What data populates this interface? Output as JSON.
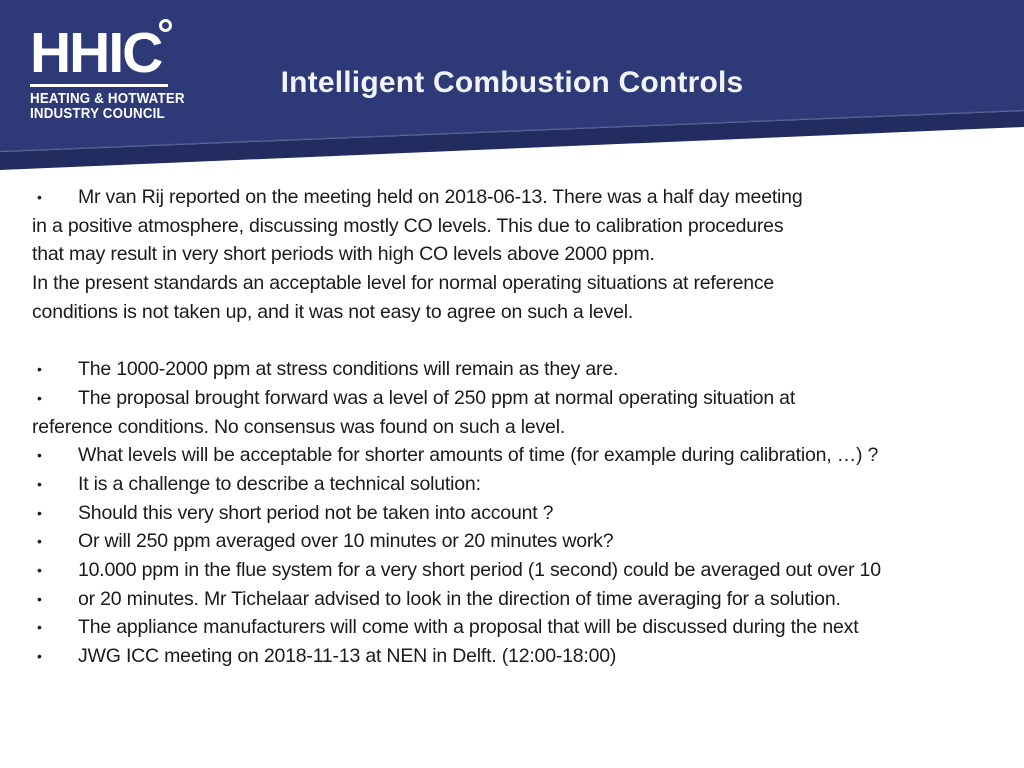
{
  "colors": {
    "header_navy": "#2d3a77",
    "header_dark_navy": "#222c60",
    "header_highlight": "#9aa2c6",
    "title_text": "#f2f3f9",
    "body_text": "#1b1b1b",
    "logo_text": "#ffffff",
    "background": "#ffffff"
  },
  "logo": {
    "acronym": "HHIC",
    "line1": "HEATING & HOTWATER",
    "line2": "INDUSTRY COUNCIL"
  },
  "title": "Intelligent Combustion Controls",
  "body": {
    "bullet_glyph": "•",
    "lines": [
      {
        "b": true,
        "t": "Mr van Rij reported on the meeting held on 2018-06-13. There was a half day meeting"
      },
      {
        "b": false,
        "t": "in a positive atmosphere, discussing mostly CO levels. This due to calibration procedures"
      },
      {
        "b": false,
        "t": "that may result in very short periods with high CO levels above 2000 ppm."
      },
      {
        "b": false,
        "t": "In the present standards an acceptable level for normal operating situations at reference"
      },
      {
        "b": false,
        "t": "conditions is not taken up, and it was not easy to agree on such a level."
      },
      {
        "b": false,
        "t": ""
      },
      {
        "b": true,
        "t": "The 1000-2000 ppm at stress conditions will remain as they are."
      },
      {
        "b": true,
        "t": "The proposal brought forward was a level of 250 ppm at normal operating situation at"
      },
      {
        "b": false,
        "t": "reference conditions. No consensus was found on such a level."
      },
      {
        "b": true,
        "t": "What levels will be acceptable for shorter amounts of time (for example during calibration, …) ?"
      },
      {
        "b": true,
        "t": "It is a challenge to describe a technical solution:"
      },
      {
        "b": true,
        "t": "Should this very short period not be taken into account ?"
      },
      {
        "b": true,
        "t": "Or will 250 ppm averaged over 10 minutes or 20 minutes work?"
      },
      {
        "b": true,
        "t": "10.000 ppm in the flue system for a very short period (1 second) could be averaged out over 10"
      },
      {
        "b": true,
        "t": "or 20 minutes. Mr Tichelaar advised to look in the direction of time averaging for a solution."
      },
      {
        "b": true,
        "t": "The appliance manufacturers will come with a proposal that will be discussed during the next"
      },
      {
        "b": true,
        "t": "JWG ICC meeting on 2018-11-13 at NEN in Delft. (12:00-18:00)"
      }
    ]
  }
}
